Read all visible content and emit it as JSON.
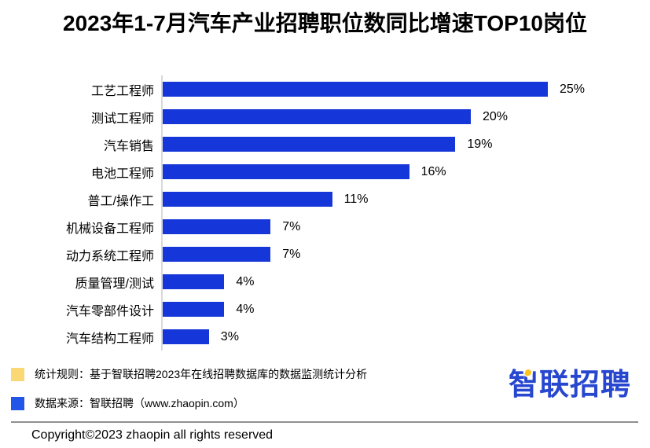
{
  "title": "2023年1-7月汽车产业招聘职位数同比增速TOP10岗位",
  "chart_data": {
    "type": "bar",
    "orientation": "horizontal",
    "title": "2023年1-7月汽车产业招聘职位数同比增速TOP10岗位",
    "categories": [
      "工艺工程师",
      "测试工程师",
      "汽车销售",
      "电池工程师",
      "普工/操作工",
      "机械设备工程师",
      "动力系统工程师",
      "质量管理/测试",
      "汽车零部件设计",
      "汽车结构工程师"
    ],
    "values": [
      25,
      20,
      19,
      16,
      11,
      7,
      7,
      4,
      4,
      3
    ],
    "value_labels": [
      "25%",
      "20%",
      "19%",
      "16%",
      "11%",
      "7%",
      "7%",
      "4%",
      "4%",
      "3%"
    ],
    "xlabel": "",
    "ylabel": "",
    "xlim": [
      0,
      25
    ],
    "grid": false,
    "legend_position": "none",
    "bar_color": "#1536d8",
    "axis_color": "#d9d9d9"
  },
  "footer": {
    "notes": [
      {
        "swatch_color": "#fad873",
        "text": "统计规则：基于智联招聘2023年在线招聘数据库的数据监测统计分析"
      },
      {
        "swatch_color": "#2356e8",
        "text": "数据来源：智联招聘（www.zhaopin.com）"
      }
    ],
    "logo": {
      "full_text": "智联招聘",
      "first_char": "智",
      "rest": "联招聘",
      "blue": "#2847cf",
      "yellow": "#ffc41e"
    },
    "copyright": "Copyright©2023 zhaopin all rights reserved"
  }
}
